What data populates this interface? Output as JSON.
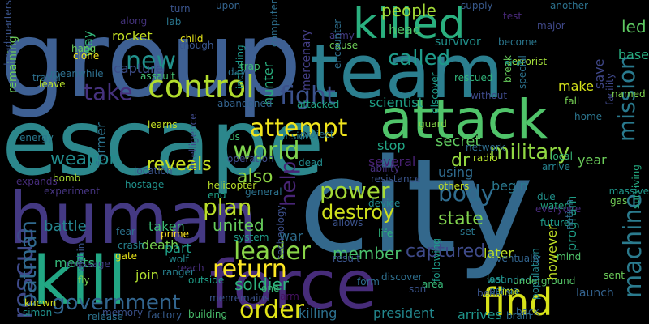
{
  "background": "#000000",
  "words": [
    {
      "text": "group",
      "color": "#3e6093"
    },
    {
      "text": "city",
      "color": "#33688c"
    },
    {
      "text": "escape",
      "color": "#2c878c"
    },
    {
      "text": "team",
      "color": "#2b7f8f"
    },
    {
      "text": "human",
      "color": "#443983"
    },
    {
      "text": "kill",
      "color": "#22a784"
    },
    {
      "text": "force",
      "color": "#472c7a"
    },
    {
      "text": "attack",
      "color": "#50c46a"
    },
    {
      "text": "killed",
      "color": "#2ab07f"
    },
    {
      "text": "control",
      "color": "#b2dd2d"
    },
    {
      "text": "find",
      "color": "#d8e219"
    },
    {
      "text": "rescue",
      "color": "#3e4989"
    },
    {
      "text": "world",
      "color": "#7fd34e"
    },
    {
      "text": "machine",
      "color": "#2b7b8e"
    },
    {
      "text": "military",
      "color": "#90d743"
    },
    {
      "text": "mission",
      "color": "#297a8e"
    },
    {
      "text": "attempt",
      "color": "#f1e51d"
    },
    {
      "text": "new",
      "color": "#21918c"
    },
    {
      "text": "fight",
      "color": "#3b518b"
    },
    {
      "text": "take",
      "color": "#46327e"
    },
    {
      "text": "government",
      "color": "#32658e"
    },
    {
      "text": "order",
      "color": "#e2e418"
    },
    {
      "text": "return",
      "color": "#fde725"
    },
    {
      "text": "leader",
      "color": "#89d548"
    },
    {
      "text": "power",
      "color": "#a5db36"
    },
    {
      "text": "plan",
      "color": "#bade28"
    },
    {
      "text": "body",
      "color": "#2f6c8e"
    },
    {
      "text": "destroy",
      "color": "#d0e11c"
    },
    {
      "text": "weapon",
      "color": "#228c8d"
    },
    {
      "text": "batman",
      "color": "#30698e"
    },
    {
      "text": "reveals",
      "color": "#c8e020"
    },
    {
      "text": "help",
      "color": "#482576"
    },
    {
      "text": "also",
      "color": "#8ed645"
    },
    {
      "text": "united",
      "color": "#67cc5c"
    },
    {
      "text": "soldier",
      "color": "#2eb37c"
    },
    {
      "text": "captured",
      "color": "#3e4a89"
    },
    {
      "text": "member",
      "color": "#4ac16d"
    },
    {
      "text": "state",
      "color": "#81d34d"
    },
    {
      "text": "people",
      "color": "#a2da37"
    },
    {
      "text": "called",
      "color": "#1e9b8a"
    },
    {
      "text": "led",
      "color": "#5ec962"
    },
    {
      "text": "dr",
      "color": "#95d840"
    },
    {
      "text": "secret",
      "color": "#60ca60"
    },
    {
      "text": "battle",
      "color": "#25848e"
    },
    {
      "text": "rocket",
      "color": "#c2df23"
    },
    {
      "text": "capture",
      "color": "#3d4d8a"
    },
    {
      "text": "hunter",
      "color": "#29af7f"
    },
    {
      "text": "scientist",
      "color": "#1fa187"
    },
    {
      "text": "begin",
      "color": "#2a788e"
    },
    {
      "text": "make",
      "color": "#d5e21a"
    },
    {
      "text": "former",
      "color": "#2c738e"
    },
    {
      "text": "killing",
      "color": "#2d708e"
    },
    {
      "text": "president",
      "color": "#23888e"
    },
    {
      "text": "arrives",
      "color": "#1f968b"
    },
    {
      "text": "however",
      "color": "#c0df25"
    },
    {
      "text": "later",
      "color": "#bddf26"
    },
    {
      "text": "save",
      "color": "#3f4788"
    },
    {
      "text": "year",
      "color": "#6ccd5a"
    },
    {
      "text": "head",
      "color": "#54c568"
    },
    {
      "text": "several",
      "color": "#482173"
    },
    {
      "text": "using",
      "color": "#2f6b8e"
    },
    {
      "text": "death",
      "color": "#77d153"
    },
    {
      "text": "taken",
      "color": "#3bbb75"
    },
    {
      "text": "war",
      "color": "#2e6d8e"
    },
    {
      "text": "join",
      "color": "#b0dd2f"
    },
    {
      "text": "part",
      "color": "#1fa088"
    },
    {
      "text": "meets",
      "color": "#35b779"
    },
    {
      "text": "way",
      "color": "#32b67a"
    },
    {
      "text": "stop",
      "color": "#21a685"
    },
    {
      "text": "base",
      "color": "#28ae80"
    },
    {
      "text": "mercenary",
      "color": "#433e85"
    },
    {
      "text": "program",
      "color": "#1f9f88"
    },
    {
      "text": "launch",
      "color": "#33628d"
    },
    {
      "text": "system",
      "color": "#1f9e89"
    },
    {
      "text": "arrive",
      "color": "#26828e"
    },
    {
      "text": "remaining",
      "color": "#6ece58"
    },
    {
      "text": "hostage",
      "color": "#20928c"
    },
    {
      "text": "bomb",
      "color": "#a8db34"
    },
    {
      "text": "child",
      "color": "#e5e419"
    },
    {
      "text": "computer",
      "color": "#2e6f8e"
    },
    {
      "text": "upon",
      "color": "#33638d"
    },
    {
      "text": "supply",
      "color": "#38598c"
    },
    {
      "text": "survivor",
      "color": "#21918c"
    },
    {
      "text": "lab",
      "color": "#2a768e"
    },
    {
      "text": "turn",
      "color": "#3a538b"
    },
    {
      "text": "test",
      "color": "#482979"
    },
    {
      "text": "another",
      "color": "#2c728e"
    },
    {
      "text": "army",
      "color": "#443b84"
    },
    {
      "text": "facility",
      "color": "#3f4889"
    },
    {
      "text": "terrorist",
      "color": "#a0da39"
    },
    {
      "text": "become",
      "color": "#2a778e"
    },
    {
      "text": "along",
      "color": "#45337d"
    },
    {
      "text": "including",
      "color": "#1f988b"
    },
    {
      "text": "rescued",
      "color": "#31b57b"
    },
    {
      "text": "discover",
      "color": "#1e9c89"
    },
    {
      "text": "experiment",
      "color": "#45347f"
    },
    {
      "text": "intelligence",
      "color": "#3e4989"
    },
    {
      "text": "wounded",
      "color": "#238a8d"
    },
    {
      "text": "technology",
      "color": "#3c4f8a"
    },
    {
      "text": "underground",
      "color": "#56c667"
    },
    {
      "text": "joshua",
      "color": "#2a788e"
    },
    {
      "text": "surviving",
      "color": "#25ac82"
    },
    {
      "text": "massive",
      "color": "#1f978b"
    },
    {
      "text": "clone",
      "color": "#f2e51d"
    },
    {
      "text": "fly",
      "color": "#7ad151"
    },
    {
      "text": "ranger",
      "color": "#27808e"
    },
    {
      "text": "simon",
      "color": "#21918c"
    },
    {
      "text": "known",
      "color": "#d5e21a"
    },
    {
      "text": "factory",
      "color": "#365c8d"
    },
    {
      "text": "building",
      "color": "#4ac16d"
    },
    {
      "text": "remains",
      "color": "#3b518b"
    },
    {
      "text": "one",
      "color": "#37b878"
    },
    {
      "text": "arm",
      "color": "#471164"
    },
    {
      "text": "gate",
      "color": "#e7e419"
    },
    {
      "text": "crash",
      "color": "#26818e"
    },
    {
      "text": "fear",
      "color": "#2c728e"
    },
    {
      "text": "prime",
      "color": "#fde725"
    },
    {
      "text": "wolf",
      "color": "#23898e"
    },
    {
      "text": "reach",
      "color": "#472d7b"
    },
    {
      "text": "outside",
      "color": "#1f9f88"
    },
    {
      "text": "memory",
      "color": "#3b518b"
    },
    {
      "text": "release",
      "color": "#2c728e"
    },
    {
      "text": "within",
      "color": "#3a548c"
    },
    {
      "text": "message",
      "color": "#433d84"
    },
    {
      "text": "travel",
      "color": "#2d708e"
    },
    {
      "text": "leave",
      "color": "#b5de2b"
    },
    {
      "text": "meanwhile",
      "color": "#2e6f8e"
    },
    {
      "text": "assault",
      "color": "#44bf70"
    },
    {
      "text": "hang",
      "color": "#6ccd5a"
    },
    {
      "text": "though",
      "color": "#39568c"
    },
    {
      "text": "headquarters",
      "color": "#3a538b"
    },
    {
      "text": "expands",
      "color": "#472d7b"
    },
    {
      "text": "energy",
      "color": "#2a788e"
    },
    {
      "text": "learns",
      "color": "#c2df23"
    },
    {
      "text": "location",
      "color": "#3a548c"
    },
    {
      "text": "helicopter",
      "color": "#b8de29"
    },
    {
      "text": "general",
      "color": "#2c728e"
    },
    {
      "text": "end",
      "color": "#1fa187"
    },
    {
      "text": "us",
      "color": "#3dbc74"
    },
    {
      "text": "operation",
      "color": "#3e4c8a"
    },
    {
      "text": "abandoned",
      "color": "#33638d"
    },
    {
      "text": "inside",
      "color": "#26828e"
    },
    {
      "text": "project",
      "color": "#2b758e"
    },
    {
      "text": "dead",
      "color": "#228b8d"
    },
    {
      "text": "attacked",
      "color": "#20a386"
    },
    {
      "text": "resistance",
      "color": "#3a548c"
    },
    {
      "text": "ability",
      "color": "#46307e"
    },
    {
      "text": "guard",
      "color": "#86d549"
    },
    {
      "text": "device",
      "color": "#23898e"
    },
    {
      "text": "radio",
      "color": "#b5de2b"
    },
    {
      "text": "network",
      "color": "#2f6c8e"
    },
    {
      "text": "local",
      "color": "#36b677"
    },
    {
      "text": "others",
      "color": "#c5e021"
    },
    {
      "text": "allows",
      "color": "#3b528b"
    },
    {
      "text": "life",
      "color": "#2eb37c"
    },
    {
      "text": "set",
      "color": "#2a778e"
    },
    {
      "text": "future",
      "color": "#1e9b8a"
    },
    {
      "text": "water",
      "color": "#22a785"
    },
    {
      "text": "due",
      "color": "#21918c"
    },
    {
      "text": "gas",
      "color": "#73d056"
    },
    {
      "text": "nation",
      "color": "#2e6e8e"
    },
    {
      "text": "mind",
      "color": "#50c46a"
    },
    {
      "text": "sent",
      "color": "#6ccd5a"
    },
    {
      "text": "form",
      "color": "#2e6d8e"
    },
    {
      "text": "discover",
      "color": "#2e6f8e"
    },
    {
      "text": "area",
      "color": "#37b878"
    },
    {
      "text": "following",
      "color": "#1e9c89"
    },
    {
      "text": "son",
      "color": "#3a538b"
    },
    {
      "text": "last",
      "color": "#20928c"
    },
    {
      "text": "behind",
      "color": "#3a548c"
    },
    {
      "text": "brain",
      "color": "#2e6f8e"
    },
    {
      "text": "back",
      "color": "#33638d"
    },
    {
      "text": "time",
      "color": "#c2df23"
    },
    {
      "text": "population",
      "color": "#24868e"
    },
    {
      "text": "eventually",
      "color": "#32648e"
    },
    {
      "text": "result",
      "color": "#3a548c"
    },
    {
      "text": "break",
      "color": "#67cc5c"
    },
    {
      "text": "special",
      "color": "#2c728e"
    },
    {
      "text": "site",
      "color": "#1e9b8a"
    },
    {
      "text": "major",
      "color": "#3f4889"
    },
    {
      "text": "without",
      "color": "#3e4989"
    },
    {
      "text": "fall",
      "color": "#75d054"
    },
    {
      "text": "home",
      "color": "#2b758e"
    },
    {
      "text": "named",
      "color": "#7fd34e"
    },
    {
      "text": "cause",
      "color": "#6ece58"
    },
    {
      "text": "encounter",
      "color": "#2e6f8e"
    },
    {
      "text": "day",
      "color": "#2c728e"
    },
    {
      "text": "trap",
      "color": "#40bd72"
    },
    {
      "text": "men",
      "color": "#3a548c"
    },
    {
      "text": "everyone",
      "color": "#472a7a"
    }
  ]
}
